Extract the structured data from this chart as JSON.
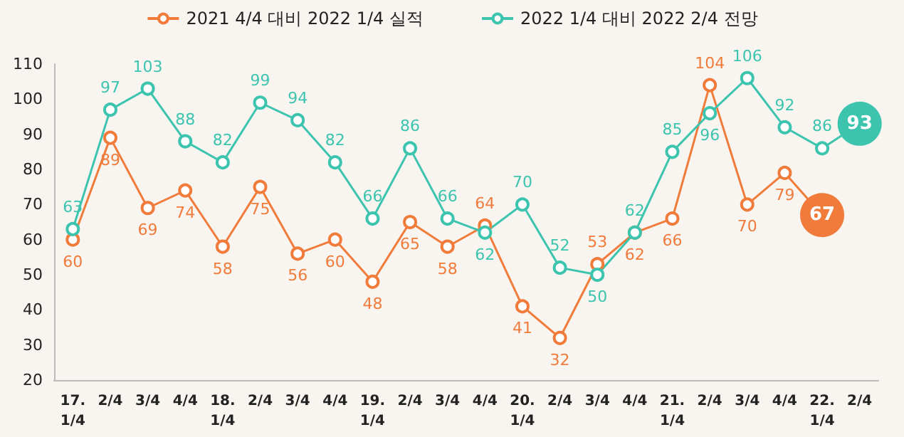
{
  "chart_data": {
    "type": "line",
    "categories": [
      "17.\n1/4",
      "2/4",
      "3/4",
      "4/4",
      "18.\n1/4",
      "2/4",
      "3/4",
      "4/4",
      "19.\n1/4",
      "2/4",
      "3/4",
      "4/4",
      "20.\n1/4",
      "2/4",
      "3/4",
      "4/4",
      "21.\n1/4",
      "2/4",
      "3/4",
      "4/4",
      "22.\n1/4",
      "2/4"
    ],
    "series": [
      {
        "name": "2021 4/4 대비 2022 1/4 실적",
        "color": "#f07b3a",
        "values": [
          60,
          89,
          69,
          74,
          58,
          75,
          56,
          60,
          48,
          65,
          58,
          64,
          41,
          32,
          53,
          62,
          66,
          104,
          70,
          79,
          67,
          null
        ]
      },
      {
        "name": "2022 1/4 대비 2022 2/4 전망",
        "color": "#3cc4ae",
        "values": [
          63,
          97,
          103,
          88,
          82,
          99,
          94,
          82,
          66,
          86,
          66,
          62,
          70,
          52,
          50,
          62,
          85,
          96,
          106,
          92,
          86,
          93
        ]
      }
    ],
    "ylim": [
      20,
      110
    ],
    "yticks": [
      20,
      30,
      40,
      50,
      60,
      70,
      80,
      90,
      100,
      110
    ],
    "grid": false,
    "legend": "top",
    "marker": "circle",
    "line_style": "solid",
    "data_labels": true
  }
}
